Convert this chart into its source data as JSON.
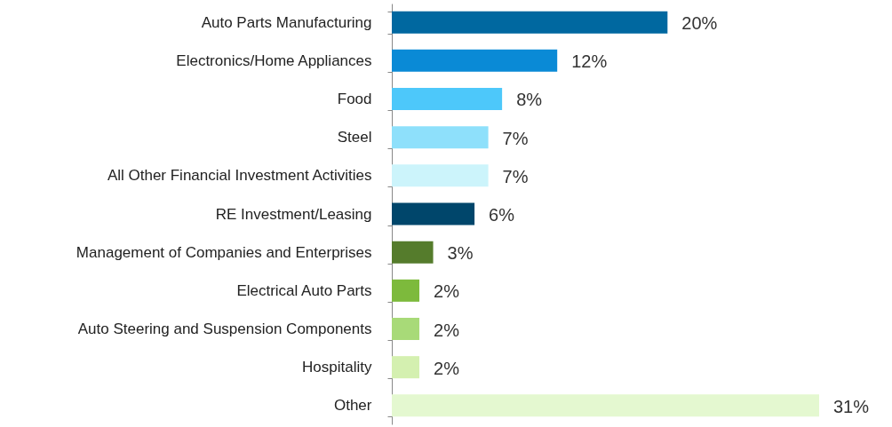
{
  "chart_data": {
    "type": "bar",
    "orientation": "horizontal",
    "value_labels": [
      "20%",
      "12%",
      "8%",
      "7%",
      "7%",
      "6%",
      "3%",
      "2%",
      "2%",
      "2%",
      "31%"
    ],
    "categories": [
      "Auto Parts Manufacturing",
      "Electronics/Home Appliances",
      "Food",
      "Steel",
      "All Other Financial Investment Activities",
      "RE Investment/Leasing",
      "Management of Companies and Enterprises",
      "Electrical Auto Parts",
      "Auto Steering and Suspension Components",
      "Hospitality",
      "Other"
    ],
    "values": [
      20,
      12,
      8,
      7,
      7,
      6,
      3,
      2,
      2,
      2,
      31
    ],
    "colors": [
      "#0068a0",
      "#0a8ad6",
      "#4dc8fa",
      "#8ee0fb",
      "#ccf4fb",
      "#00466b",
      "#557c2c",
      "#7dba3c",
      "#a8da78",
      "#d4f0b0",
      "#e4f8d0"
    ]
  }
}
